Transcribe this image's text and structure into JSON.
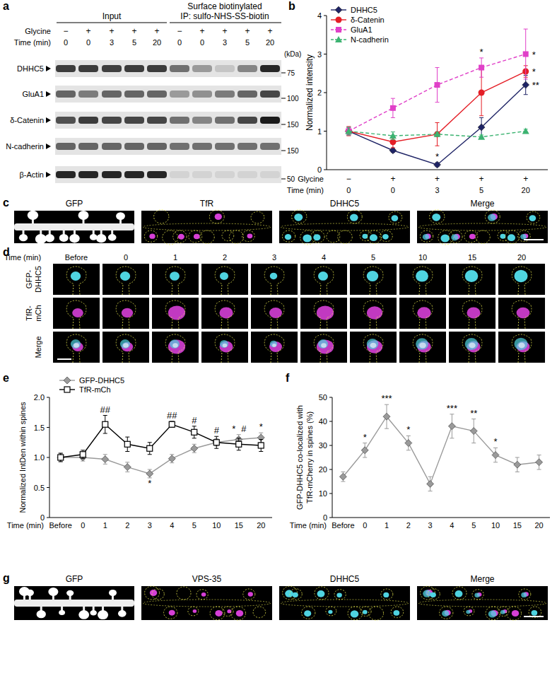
{
  "panel_labels": [
    "a",
    "b",
    "c",
    "d",
    "e",
    "f",
    "g"
  ],
  "blot": {
    "headers": {
      "input": "Input",
      "surface": "Surface biotinylated",
      "ip": "IP: sulfo-NHS-SS-biotin"
    },
    "glycine_label": "Glycine",
    "glycine": [
      "−",
      "+",
      "+",
      "+",
      "+",
      "−",
      "+",
      "+",
      "+",
      "+"
    ],
    "time_label": "Time (min)",
    "time": [
      "0",
      "0",
      "3",
      "5",
      "20",
      "0",
      "0",
      "3",
      "5",
      "20"
    ],
    "kda_label": "(kDa)",
    "rows": [
      {
        "name": "DHHC5",
        "kda": 75,
        "bands": [
          0.8,
          0.8,
          0.78,
          0.8,
          0.8,
          0.55,
          0.35,
          0.15,
          0.45,
          0.9
        ]
      },
      {
        "name": "GluA1",
        "kda": 100,
        "bands": [
          0.6,
          0.5,
          0.6,
          0.6,
          0.6,
          0.35,
          0.4,
          0.5,
          0.6,
          0.75
        ]
      },
      {
        "name": "δ-Catenin",
        "kda": 150,
        "bands": [
          0.7,
          0.8,
          0.75,
          0.75,
          0.75,
          0.55,
          0.45,
          0.55,
          0.75,
          0.95
        ]
      },
      {
        "name": "N-cadherin",
        "kda": 150,
        "bands": [
          0.6,
          0.6,
          0.6,
          0.6,
          0.6,
          0.55,
          0.55,
          0.55,
          0.55,
          0.55
        ]
      },
      {
        "name": "β-Actin",
        "kda": 50,
        "bands": [
          0.9,
          0.9,
          0.9,
          0.9,
          0.9,
          0.08,
          0.08,
          0.08,
          0.08,
          0.08
        ]
      }
    ]
  },
  "chart_data": [
    {
      "type": "line",
      "y_label": "Normalized intensity",
      "ylim": [
        0,
        4
      ],
      "yticks": [
        0,
        1,
        2,
        3,
        4
      ],
      "glycine_label": "Glycine",
      "glycine": [
        "−",
        "+",
        "+",
        "+",
        "+"
      ],
      "x_label": "Time (min)",
      "categories": [
        "0",
        "0",
        "3",
        "5",
        "20"
      ],
      "legend": "upper left",
      "series": [
        {
          "name": "DHHC5",
          "color": "#1f2466",
          "marker": "diamond",
          "line_style": "solid",
          "values": [
            1.0,
            0.5,
            0.13,
            1.1,
            2.2
          ],
          "errors": [
            0.1,
            0.05,
            0.05,
            0.25,
            0.25
          ],
          "significance": [
            null,
            null,
            "*",
            null,
            "**"
          ]
        },
        {
          "name": "δ-Catenin",
          "color": "#e41e26",
          "marker": "circle",
          "line_style": "solid",
          "values": [
            1.0,
            0.72,
            0.92,
            2.0,
            2.55
          ],
          "errors": [
            0.12,
            0.15,
            0.3,
            0.6,
            0.15
          ],
          "significance": [
            null,
            null,
            null,
            null,
            "*"
          ]
        },
        {
          "name": "GluA1",
          "color": "#e040c8",
          "marker": "square",
          "line_style": "dashed",
          "values": [
            1.0,
            1.6,
            2.2,
            2.65,
            3.0
          ],
          "errors": [
            0.1,
            0.25,
            0.45,
            0.25,
            0.65
          ],
          "significance": [
            null,
            null,
            null,
            "*",
            "*"
          ]
        },
        {
          "name": "N-cadherin",
          "color": "#3cb371",
          "marker": "triangle",
          "line_style": "dashed",
          "values": [
            1.0,
            0.88,
            0.92,
            0.85,
            1.0
          ],
          "errors": [
            0.1,
            0.1,
            0.05,
            0.05,
            0.05
          ],
          "significance": [
            null,
            null,
            null,
            null,
            null
          ]
        }
      ]
    },
    {
      "type": "line",
      "y_label": "Normalized IntDen within spines",
      "ylim": [
        0,
        2
      ],
      "yticks": [
        0,
        0.5,
        {
          "value": 1,
          "label": "1.0"
        },
        1.5,
        {
          "value": 2,
          "label": "2.0"
        }
      ],
      "x_label": "Time (min)",
      "categories": [
        "Before",
        "0",
        "1",
        "2",
        "3",
        "4",
        "5",
        "10",
        "15",
        "20"
      ],
      "legend": "upper left",
      "series": [
        {
          "name": "GFP-DHHC5",
          "color": "#9a9a9a",
          "marker": "diamond",
          "line_style": "solid",
          "values": [
            1.0,
            1.0,
            0.97,
            0.84,
            0.73,
            0.98,
            1.15,
            1.25,
            1.3,
            1.33
          ],
          "errors": [
            0.07,
            0.06,
            0.08,
            0.08,
            0.07,
            0.07,
            0.07,
            0.06,
            0.08,
            0.08
          ],
          "significance": [
            null,
            null,
            null,
            null,
            "*",
            null,
            null,
            null,
            "*",
            "*"
          ]
        },
        {
          "name": "TfR-mCh",
          "color": "#000000",
          "marker": "open-square",
          "line_style": "solid",
          "values": [
            1.0,
            1.05,
            1.55,
            1.22,
            1.15,
            1.55,
            1.42,
            1.25,
            1.22,
            1.2
          ],
          "errors": [
            0.07,
            0.07,
            0.15,
            0.12,
            0.1,
            0.05,
            0.1,
            0.1,
            0.1,
            0.1
          ],
          "significance": [
            null,
            null,
            "##",
            null,
            null,
            "##",
            "#",
            "#",
            "#",
            null
          ]
        }
      ]
    },
    {
      "type": "line",
      "y_label": [
        "GFP-DHHC5 co-localized with",
        "TfR-mCherry in spines (%)"
      ],
      "ylim": [
        0,
        50
      ],
      "yticks": [
        0,
        10,
        20,
        30,
        40,
        50
      ],
      "x_label": "Time (min)",
      "categories": [
        "Before",
        "0",
        "1",
        "2",
        "3",
        "4",
        "5",
        "10",
        "15",
        "20"
      ],
      "series": [
        {
          "color": "#9a9a9a",
          "marker": "diamond",
          "line_style": "solid",
          "values": [
            17,
            28,
            42,
            31,
            14,
            38,
            36,
            26,
            22,
            23
          ],
          "errors": [
            2,
            3,
            5,
            3,
            3,
            5,
            5,
            3,
            3,
            3
          ],
          "significance": [
            null,
            "*",
            "***",
            "*",
            null,
            "***",
            "**",
            "*",
            null,
            null
          ]
        }
      ]
    }
  ],
  "panel_c": {
    "titles": [
      "GFP",
      "TfR",
      "DHHC5",
      "Merge"
    ]
  },
  "panel_d": {
    "time_label": "Time (min)",
    "times": [
      "Before",
      "0",
      "1",
      "2",
      "3",
      "4",
      "5",
      "10",
      "15",
      "20"
    ],
    "rows": [
      [
        "GFP-",
        "DHHC5"
      ],
      [
        "TfR-",
        "mCh"
      ],
      [
        "Merge"
      ]
    ]
  },
  "panel_g": {
    "titles": [
      "GFP",
      "VPS-35",
      "DHHC5",
      "Merge"
    ]
  }
}
